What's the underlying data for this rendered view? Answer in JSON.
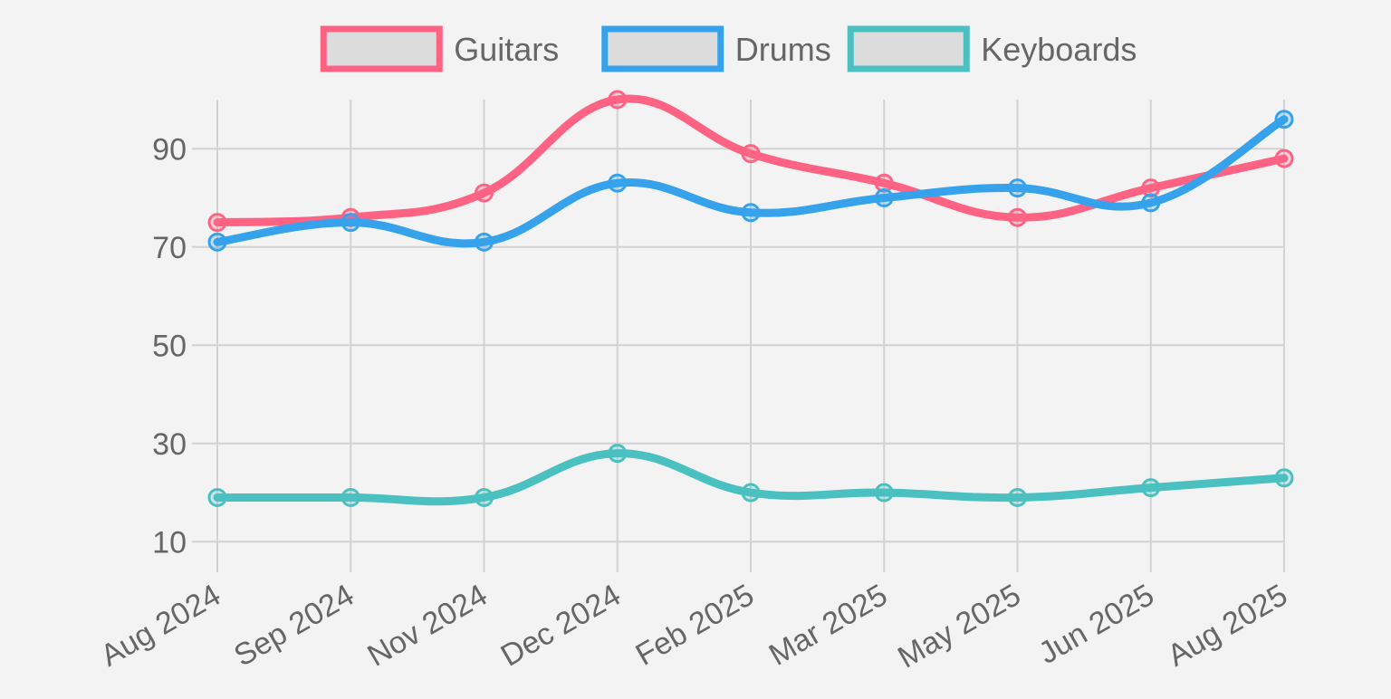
{
  "chart_data": {
    "type": "line",
    "title": "",
    "xlabel": "",
    "ylabel": "",
    "categories": [
      "Aug 2024",
      "Sep 2024",
      "Nov 2024",
      "Dec 2024",
      "Feb 2025",
      "Mar 2025",
      "May 2025",
      "Jun 2025",
      "Aug 2025"
    ],
    "ylim": [
      6,
      100
    ],
    "yticks": [
      10,
      30,
      50,
      70,
      90
    ],
    "grid": true,
    "legend": "top-center",
    "series": [
      {
        "name": "Guitars",
        "color": "#ff6384",
        "values": [
          75,
          76,
          81,
          100,
          89,
          83,
          76,
          82,
          88
        ]
      },
      {
        "name": "Drums",
        "color": "#36a2eb",
        "values": [
          71,
          75,
          71,
          83,
          77,
          80,
          82,
          79,
          96
        ]
      },
      {
        "name": "Keyboards",
        "color": "#4bc0c0",
        "values": [
          19,
          19,
          19,
          28,
          20,
          20,
          19,
          21,
          23
        ]
      }
    ]
  }
}
